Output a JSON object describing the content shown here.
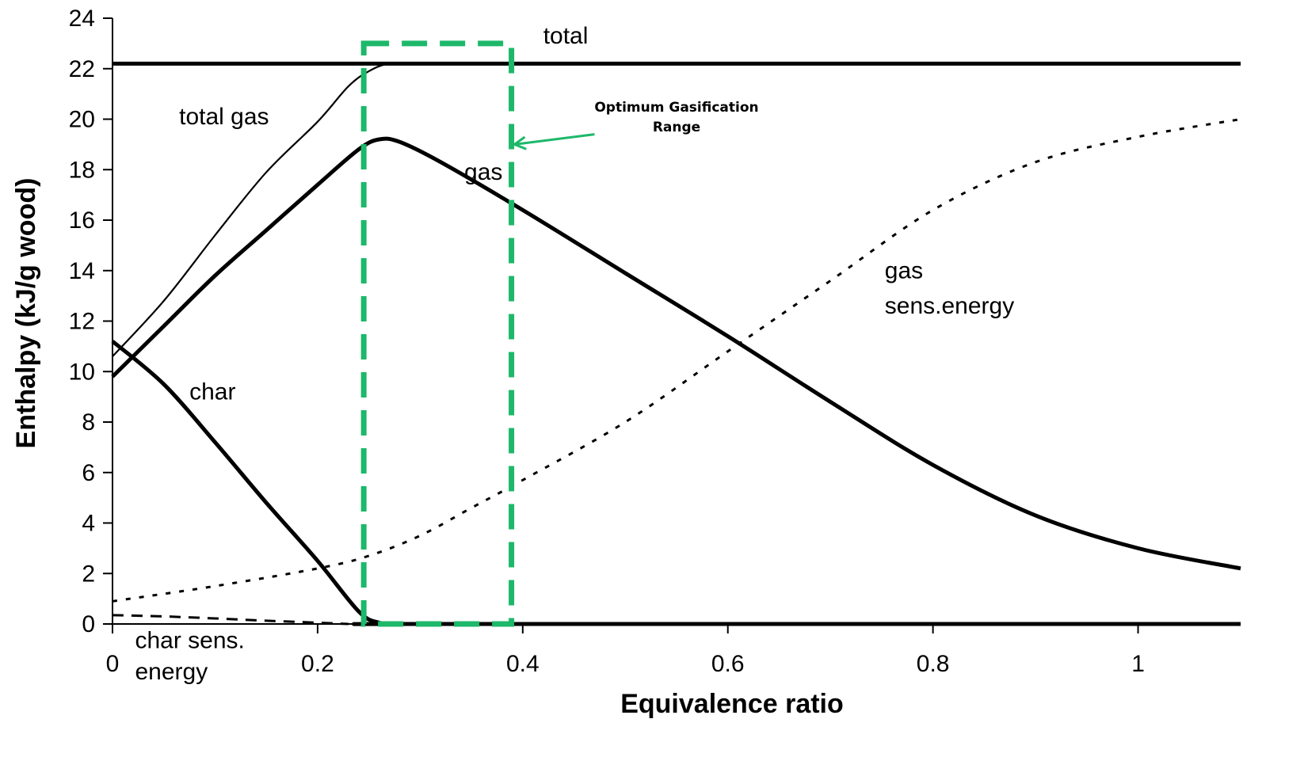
{
  "chart_data": {
    "type": "line",
    "xlabel": "Equivalence ratio",
    "ylabel": "Enthalpy (kJ/g wood)",
    "xlim": [
      0,
      1.1
    ],
    "ylim": [
      0,
      24
    ],
    "x_ticks": [
      "0",
      "0.2",
      "0.4",
      "0.6",
      "0.8",
      "1"
    ],
    "x_tick_values": [
      0,
      0.2,
      0.4,
      0.6,
      0.8,
      1.0
    ],
    "y_ticks": [
      "0",
      "2",
      "4",
      "6",
      "8",
      "10",
      "12",
      "14",
      "16",
      "18",
      "20",
      "22",
      "24"
    ],
    "y_tick_values": [
      0,
      2,
      4,
      6,
      8,
      10,
      12,
      14,
      16,
      18,
      20,
      22,
      24
    ],
    "grid": false,
    "series": [
      {
        "name": "total",
        "style": "solid-thick",
        "x": [
          0,
          1.1
        ],
        "y": [
          22.2,
          22.2
        ]
      },
      {
        "name": "total gas",
        "style": "solid-thin",
        "x": [
          0,
          0.05,
          0.1,
          0.15,
          0.2,
          0.23,
          0.25,
          0.27,
          0.3,
          1.1
        ],
        "y": [
          10.6,
          12.8,
          15.4,
          17.9,
          19.9,
          21.3,
          21.9,
          22.2,
          22.2,
          22.2
        ]
      },
      {
        "name": "gas",
        "style": "solid-thick",
        "x": [
          0,
          0.05,
          0.1,
          0.15,
          0.2,
          0.24,
          0.26,
          0.28,
          0.32,
          0.4,
          0.5,
          0.6,
          0.7,
          0.8,
          0.9,
          1.0,
          1.1
        ],
        "y": [
          9.8,
          11.8,
          13.8,
          15.6,
          17.4,
          18.8,
          19.2,
          19.1,
          18.3,
          16.4,
          13.9,
          11.4,
          8.8,
          6.3,
          4.3,
          3.0,
          2.2
        ]
      },
      {
        "name": "char",
        "style": "solid-thick",
        "x": [
          0,
          0.05,
          0.1,
          0.15,
          0.2,
          0.24,
          0.26,
          0.28,
          0.3,
          1.1
        ],
        "y": [
          11.2,
          9.5,
          7.2,
          4.8,
          2.5,
          0.5,
          0.05,
          0.0,
          0.0,
          0.0
        ]
      },
      {
        "name": "gas sens.energy",
        "style": "dotted",
        "x": [
          0,
          0.1,
          0.2,
          0.25,
          0.3,
          0.35,
          0.4,
          0.5,
          0.6,
          0.7,
          0.8,
          0.9,
          1.0,
          1.1
        ],
        "y": [
          0.9,
          1.5,
          2.2,
          2.7,
          3.5,
          4.6,
          5.7,
          8.0,
          10.8,
          13.6,
          16.4,
          18.3,
          19.3,
          20.0
        ]
      },
      {
        "name": "char sens. energy",
        "style": "dashed",
        "x": [
          0,
          0.05,
          0.1,
          0.15,
          0.2,
          0.23
        ],
        "y": [
          0.35,
          0.3,
          0.22,
          0.13,
          0.05,
          0.0
        ]
      }
    ],
    "annotations": [
      {
        "text": "total",
        "x": 0.42,
        "y": 23.0
      },
      {
        "text": "total gas",
        "x": 0.065,
        "y": 19.8
      },
      {
        "text": "gas",
        "x": 0.343,
        "y": 17.6
      },
      {
        "text": "gas",
        "x": 0.753,
        "y": 13.7
      },
      {
        "text": "sens.energy",
        "x": 0.753,
        "y": 12.3
      },
      {
        "text": "char",
        "x": 0.075,
        "y": 8.9
      },
      {
        "text": "char sens.",
        "x": 0.022,
        "y": -0.95
      },
      {
        "text": "energy",
        "x": 0.022,
        "y": -2.2
      }
    ],
    "highlight": {
      "label_line1": "Optimum Gasification",
      "label_line2": "Range",
      "x_range": [
        0.245,
        0.389
      ],
      "y_range": [
        0,
        23.0
      ],
      "color": "#1db86a",
      "label_x": 0.55,
      "label_y": 20.3,
      "arrow_from": [
        0.47,
        19.4
      ],
      "arrow_to": [
        0.392,
        19.0
      ]
    }
  }
}
